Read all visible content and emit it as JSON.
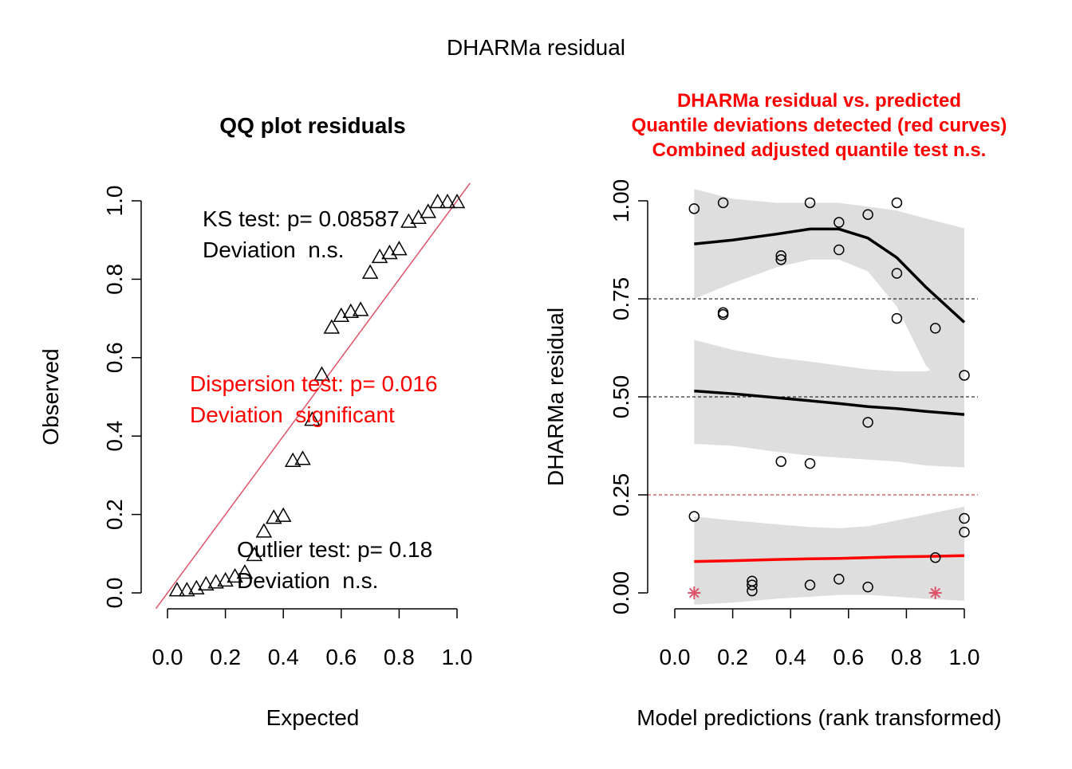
{
  "figure_title": "DHARMa residual",
  "colors": {
    "red": "#ff0000",
    "diag": "#df536b",
    "band": "#dedede",
    "black": "#000000",
    "grid": "#000000"
  },
  "chart_data": [
    {
      "type": "scatter",
      "title": "QQ plot residuals",
      "xlabel": "Expected",
      "ylabel": "Observed",
      "xlim": [
        0,
        1
      ],
      "ylim": [
        0,
        1
      ],
      "xticks": [
        "0.0",
        "0.2",
        "0.4",
        "0.6",
        "0.8",
        "1.0"
      ],
      "yticks": [
        "0.0",
        "0.2",
        "0.4",
        "0.6",
        "0.8",
        "1.0"
      ],
      "marker": "triangle",
      "reference_line": "y = x",
      "points": [
        [
          0.033,
          0.005
        ],
        [
          0.067,
          0.005
        ],
        [
          0.1,
          0.01
        ],
        [
          0.133,
          0.02
        ],
        [
          0.167,
          0.025
        ],
        [
          0.2,
          0.03
        ],
        [
          0.233,
          0.04
        ],
        [
          0.267,
          0.05
        ],
        [
          0.3,
          0.095
        ],
        [
          0.333,
          0.155
        ],
        [
          0.367,
          0.19
        ],
        [
          0.4,
          0.195
        ],
        [
          0.433,
          0.335
        ],
        [
          0.467,
          0.34
        ],
        [
          0.5,
          0.44
        ],
        [
          0.533,
          0.555
        ],
        [
          0.567,
          0.675
        ],
        [
          0.6,
          0.705
        ],
        [
          0.633,
          0.715
        ],
        [
          0.667,
          0.72
        ],
        [
          0.7,
          0.815
        ],
        [
          0.733,
          0.855
        ],
        [
          0.767,
          0.865
        ],
        [
          0.8,
          0.875
        ],
        [
          0.833,
          0.945
        ],
        [
          0.867,
          0.955
        ],
        [
          0.9,
          0.97
        ],
        [
          0.933,
          0.995
        ],
        [
          0.967,
          0.995
        ],
        [
          1.0,
          0.995
        ]
      ],
      "annotations": [
        {
          "line1": "KS test: p= 0.08587",
          "line2": "Deviation  n.s.",
          "color": "black"
        },
        {
          "line1": "Dispersion test: p= 0.016",
          "line2": "Deviation  significant",
          "color": "red"
        },
        {
          "line1": "Outlier test: p= 0.18",
          "line2": "Deviation  n.s.",
          "color": "black"
        }
      ]
    },
    {
      "type": "scatter",
      "title_lines": [
        "DHARMa residual vs. predicted",
        "Quantile deviations detected (red curves)",
        "Combined adjusted quantile test n.s."
      ],
      "xlabel": "Model predictions (rank transformed)",
      "ylabel": "DHARMa residual",
      "xlim": [
        0,
        1
      ],
      "ylim": [
        0,
        1
      ],
      "xticks": [
        "0.0",
        "0.2",
        "0.4",
        "0.6",
        "0.8",
        "1.0"
      ],
      "yticks": [
        "0.00",
        "0.25",
        "0.50",
        "0.75",
        "1.00"
      ],
      "reference_lines": [
        0.25,
        0.5,
        0.75
      ],
      "points": [
        [
          0.067,
          0.98
        ],
        [
          0.067,
          0.195
        ],
        [
          0.167,
          0.995
        ],
        [
          0.167,
          0.715
        ],
        [
          0.167,
          0.71
        ],
        [
          0.267,
          0.03
        ],
        [
          0.267,
          0.02
        ],
        [
          0.267,
          0.005
        ],
        [
          0.367,
          0.86
        ],
        [
          0.367,
          0.85
        ],
        [
          0.367,
          0.335
        ],
        [
          0.467,
          0.995
        ],
        [
          0.467,
          0.33
        ],
        [
          0.467,
          0.02
        ],
        [
          0.567,
          0.945
        ],
        [
          0.567,
          0.875
        ],
        [
          0.567,
          0.035
        ],
        [
          0.667,
          0.965
        ],
        [
          0.667,
          0.435
        ],
        [
          0.667,
          0.015
        ],
        [
          0.767,
          0.995
        ],
        [
          0.767,
          0.815
        ],
        [
          0.767,
          0.7
        ],
        [
          0.9,
          0.675
        ],
        [
          0.9,
          0.09
        ],
        [
          1.0,
          0.555
        ],
        [
          1.0,
          0.19
        ],
        [
          1.0,
          0.155
        ]
      ],
      "outliers": [
        [
          0.067,
          0.0
        ],
        [
          0.9,
          0.0
        ]
      ],
      "quantile_curves": [
        {
          "quantile": 0.75,
          "color": "black",
          "x": [
            0.067,
            0.2,
            0.35,
            0.467,
            0.567,
            0.667,
            0.767,
            0.867,
            1.0
          ],
          "y": [
            0.89,
            0.9,
            0.915,
            0.928,
            0.928,
            0.905,
            0.855,
            0.78,
            0.69
          ],
          "lower": [
            0.75,
            0.79,
            0.83,
            0.85,
            0.85,
            0.82,
            0.73,
            0.58,
            0.48
          ],
          "upper": [
            1.03,
            1.005,
            0.995,
            0.995,
            0.995,
            0.985,
            0.975,
            0.955,
            0.93
          ]
        },
        {
          "quantile": 0.5,
          "color": "black",
          "x": [
            0.067,
            0.2,
            0.35,
            0.467,
            0.567,
            0.667,
            0.767,
            0.867,
            1.0
          ],
          "y": [
            0.515,
            0.508,
            0.498,
            0.49,
            0.483,
            0.475,
            0.47,
            0.463,
            0.455
          ],
          "lower": [
            0.38,
            0.375,
            0.36,
            0.35,
            0.345,
            0.34,
            0.335,
            0.325,
            0.32
          ],
          "upper": [
            0.645,
            0.62,
            0.6,
            0.59,
            0.58,
            0.57,
            0.565,
            0.565,
            0.59
          ]
        },
        {
          "quantile": 0.25,
          "color": "red",
          "x": [
            0.067,
            0.2,
            0.35,
            0.467,
            0.567,
            0.667,
            0.767,
            0.867,
            1.0
          ],
          "y": [
            0.08,
            0.082,
            0.085,
            0.087,
            0.088,
            0.09,
            0.092,
            0.093,
            0.095
          ],
          "lower": [
            -0.03,
            -0.025,
            -0.015,
            -0.01,
            -0.005,
            -0.005,
            -0.01,
            -0.015,
            -0.02
          ],
          "upper": [
            0.195,
            0.185,
            0.175,
            0.168,
            0.165,
            0.17,
            0.185,
            0.2,
            0.22
          ]
        }
      ]
    }
  ]
}
